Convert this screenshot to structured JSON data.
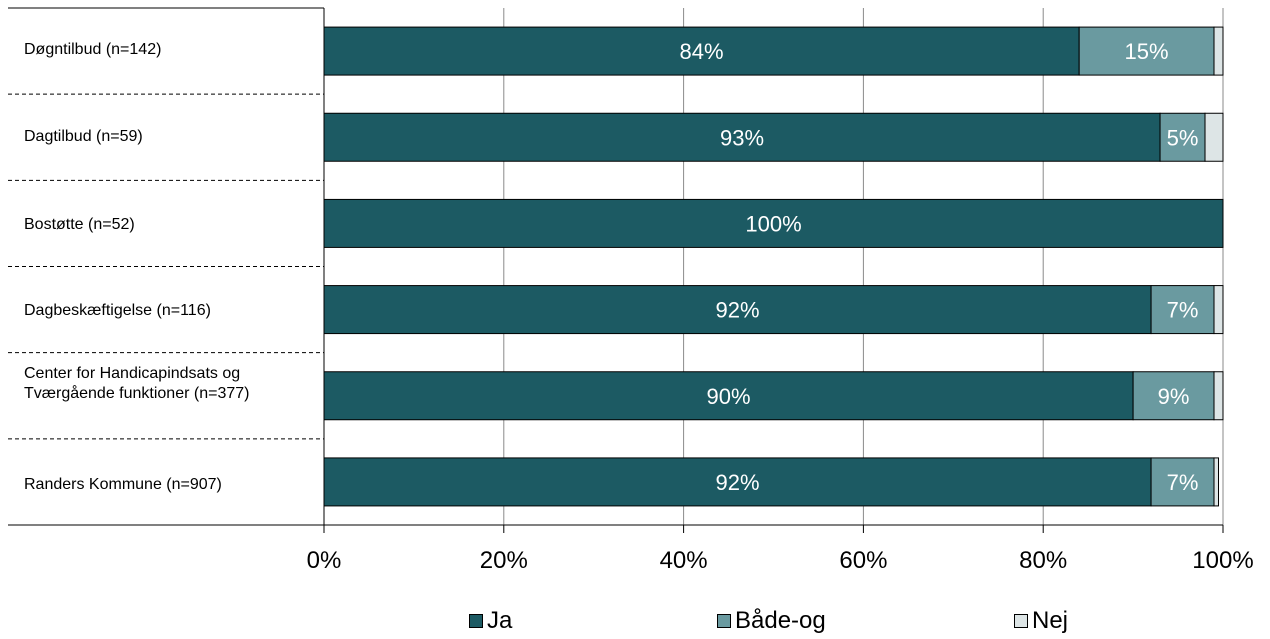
{
  "chart_data": {
    "type": "bar",
    "orientation": "horizontal",
    "stacked": true,
    "categories": [
      "Døgntilbud (n=142)",
      "Dagtilbud (n=59)",
      "Bostøtte (n=52)",
      "Dagbeskæftigelse (n=116)",
      "Center for Handicapindsats og Tværgående funktioner (n=377)",
      "Randers Kommune (n=907)"
    ],
    "series": [
      {
        "name": "Ja",
        "color": "#1c5a63",
        "values": [
          84,
          93,
          100,
          92,
          90,
          92
        ],
        "labels": [
          "84%",
          "93%",
          "100%",
          "92%",
          "90%",
          "92%"
        ]
      },
      {
        "name": "Både-og",
        "color": "#6a9aa0",
        "values": [
          15,
          5,
          0,
          7,
          9,
          7
        ],
        "labels": [
          "15%",
          "5%",
          "",
          "7%",
          "9%",
          "7%"
        ]
      },
      {
        "name": "Nej",
        "color": "#dde5e6",
        "values": [
          1,
          2,
          0,
          1,
          1,
          0.5
        ],
        "labels": [
          "",
          "",
          "",
          "",
          "",
          ""
        ]
      }
    ],
    "x_ticks": [
      "0%",
      "20%",
      "40%",
      "60%",
      "80%",
      "100%"
    ],
    "xlim": [
      0,
      100
    ],
    "grid": true,
    "legend_position": "bottom"
  }
}
